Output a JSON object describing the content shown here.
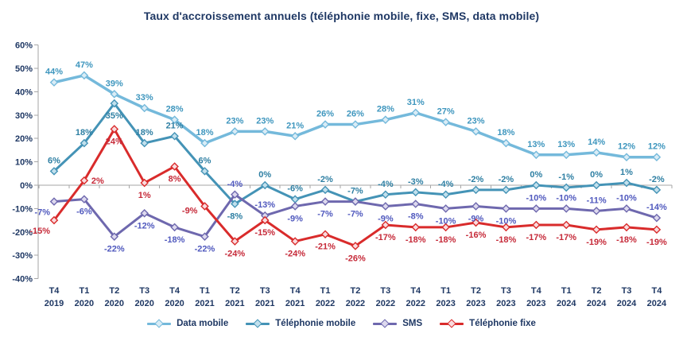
{
  "chart_data": {
    "type": "line",
    "title": "Taux d'accroissement annuels (téléphonie mobile, fixe, SMS, data mobile)",
    "categories": [
      [
        "T4",
        "2019"
      ],
      [
        "T1",
        "2020"
      ],
      [
        "T2",
        "2020"
      ],
      [
        "T3",
        "2020"
      ],
      [
        "T4",
        "2020"
      ],
      [
        "T1",
        "2021"
      ],
      [
        "T2",
        "2021"
      ],
      [
        "T3",
        "2021"
      ],
      [
        "T4",
        "2021"
      ],
      [
        "T1",
        "2022"
      ],
      [
        "T2",
        "2022"
      ],
      [
        "T3",
        "2022"
      ],
      [
        "T4",
        "2022"
      ],
      [
        "T1",
        "2023"
      ],
      [
        "T2",
        "2023"
      ],
      [
        "T3",
        "2023"
      ],
      [
        "T4",
        "2023"
      ],
      [
        "T1",
        "2024"
      ],
      [
        "T2",
        "2024"
      ],
      [
        "T3",
        "2024"
      ],
      [
        "T4",
        "2024"
      ]
    ],
    "y_axis": {
      "min": -40,
      "max": 60,
      "step": 10,
      "tick_labels": [
        "60%",
        "50%",
        "40%",
        "30%",
        "20%",
        "10%",
        "0%",
        "-10%",
        "-20%",
        "-30%",
        "-40%"
      ]
    },
    "grid": "zero-line-only",
    "legend_position": "bottom",
    "value_suffix": "%",
    "colors": {
      "text": "#1F3864",
      "axis": "#A6A6A6"
    },
    "series": [
      {
        "name": "Data mobile",
        "line_color": "#74B9DB",
        "marker_fill": "#D9ECF6",
        "label_color": "#3E96BE",
        "values": [
          44,
          47,
          39,
          33,
          28,
          18,
          23,
          23,
          21,
          26,
          26,
          28,
          31,
          27,
          23,
          18,
          13,
          13,
          14,
          12,
          12
        ],
        "label_pos": [
          "a",
          "a",
          "a",
          "a",
          "a",
          "a",
          "a",
          "a",
          "a",
          "a",
          "a",
          "a",
          "a",
          "a",
          "a",
          "a",
          "a",
          "a",
          "a",
          "a",
          "a"
        ]
      },
      {
        "name": "Téléphonie mobile",
        "line_color": "#4493B6",
        "marker_fill": "#C2E0ED",
        "label_color": "#2E7FA3",
        "values": [
          6,
          18,
          35,
          18,
          21,
          6,
          -8,
          0,
          -6,
          -2,
          -7,
          -4,
          -3,
          -4,
          -2,
          -2,
          0,
          -1,
          0,
          1,
          -2
        ],
        "label_pos": [
          "a",
          "a",
          "b",
          "a",
          "a",
          "a",
          "b",
          "a",
          "a",
          "a",
          "a",
          "a",
          "a",
          "a",
          "a",
          "a",
          "a",
          "a",
          "a",
          "a",
          "a"
        ]
      },
      {
        "name": "SMS",
        "line_color": "#6E68AE",
        "marker_fill": "#DDD9EE",
        "label_color": "#5059BE",
        "values": [
          -7,
          -6,
          -22,
          -12,
          -18,
          -22,
          -4,
          -13,
          -9,
          -7,
          -7,
          -9,
          -8,
          -10,
          -9,
          -10,
          -10,
          -10,
          -11,
          -10,
          -14
        ],
        "label_pos": [
          "bl",
          "b",
          "b",
          "b",
          "b",
          "b",
          "a",
          "a",
          "b",
          "b",
          "b",
          "b",
          "b",
          "b",
          "b",
          "b",
          "a",
          "a",
          "a",
          "a",
          "a"
        ]
      },
      {
        "name": "Téléphonie fixe",
        "line_color": "#D92B2B",
        "marker_fill": "#F9DBDE",
        "label_color": "#C62A39",
        "values": [
          -15,
          2,
          24,
          1,
          8,
          -9,
          -24,
          -15,
          -24,
          -21,
          -26,
          -17,
          -18,
          -18,
          -16,
          -18,
          -17,
          -17,
          -19,
          -18,
          -19
        ],
        "label_pos": [
          "bl",
          "r",
          "b",
          "b",
          "b",
          "l",
          "b",
          "b",
          "b",
          "b",
          "b",
          "b",
          "b",
          "b",
          "b",
          "b",
          "b",
          "b",
          "b",
          "b",
          "b"
        ]
      }
    ]
  }
}
